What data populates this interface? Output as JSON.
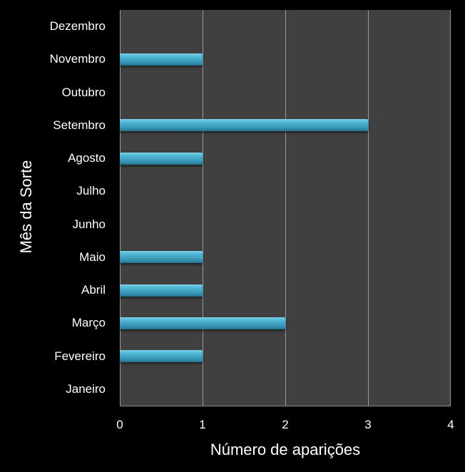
{
  "chart_data": {
    "type": "bar",
    "orientation": "horizontal",
    "title": "",
    "xlabel": "Número de aparições",
    "ylabel": "Mês da Sorte",
    "categories": [
      "Janeiro",
      "Fevereiro",
      "Março",
      "Abril",
      "Maio",
      "Junho",
      "Julho",
      "Agosto",
      "Setembro",
      "Outubro",
      "Novembro",
      "Dezembro"
    ],
    "values": [
      0,
      1,
      2,
      1,
      1,
      0,
      0,
      1,
      3,
      0,
      1,
      0
    ],
    "xlim": [
      0,
      4
    ],
    "xticks": [
      "0",
      "1",
      "2",
      "3",
      "4"
    ],
    "grid": true,
    "legend": null,
    "colors": {
      "bar": "#4bb0cf",
      "plot_bg": "#404040",
      "background": "#000000",
      "gridline": "#9a9a9a",
      "text": "#ffffff"
    }
  }
}
